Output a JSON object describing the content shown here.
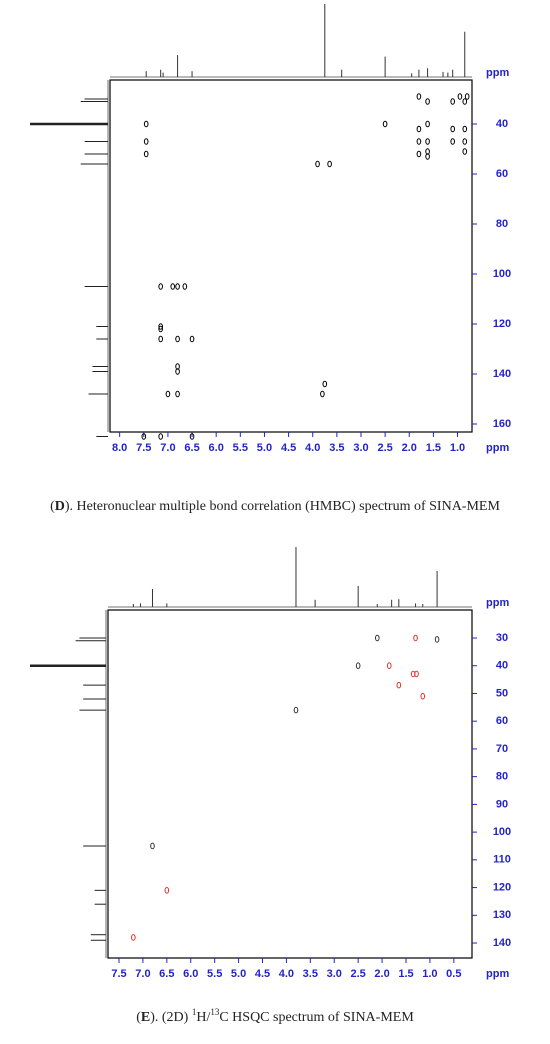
{
  "chart_data": [
    {
      "type": "scatter",
      "xlabel": "ppm",
      "ylabel": "ppm",
      "axis_color": "#2323c8",
      "caption": [
        {
          "text": "("
        },
        {
          "text": "D",
          "style": "bold"
        },
        {
          "text": "). Heteronuclear multiple bond correlation (HMBC) spectrum of SINA-MEM"
        }
      ],
      "xlim": [
        8.2,
        0.7
      ],
      "ylim": [
        22.4,
        163.2
      ],
      "xticks": [
        {
          "value": 8,
          "label": "8.0"
        },
        7.5,
        {
          "value": 7,
          "label": "7.0"
        },
        6.5,
        {
          "value": 6,
          "label": "6.0"
        },
        5.5,
        {
          "value": 5,
          "label": "5.0"
        },
        4.5,
        {
          "value": 4,
          "label": "4.0"
        },
        3.5,
        {
          "value": 3,
          "label": "3.0"
        },
        2.5,
        {
          "value": 2,
          "label": "2.0"
        },
        1.5,
        {
          "value": 1,
          "label": "1.0"
        }
      ],
      "yticks": [
        40,
        60,
        80,
        100,
        120,
        140,
        160
      ],
      "series": [
        {
          "color": "#000000",
          "x": [
            1.8,
            1.62,
            1.1,
            0.95,
            0.85,
            0.8,
            7.45,
            2.5,
            1.8,
            1.62,
            1.1,
            0.85,
            7.45,
            1.8,
            1.62,
            1.1,
            0.85,
            7.45,
            1.8,
            1.62,
            1.62,
            0.85,
            3.9,
            3.65,
            7.15,
            6.9,
            6.8,
            6.65,
            7.15,
            7.15,
            7.15,
            6.8,
            6.5,
            6.8,
            6.8,
            3.75,
            7.0,
            6.8,
            3.8,
            7.5,
            7.15,
            6.5
          ],
          "values": [
            29,
            31,
            31,
            29,
            31,
            29,
            40,
            40,
            42,
            40,
            42,
            42,
            47,
            47,
            47,
            47,
            47,
            52,
            52,
            51,
            53,
            51,
            56,
            56,
            105,
            105,
            105,
            105,
            121,
            122,
            126,
            126,
            126,
            137,
            139,
            144,
            148,
            148,
            148,
            165,
            165,
            165
          ]
        }
      ],
      "x_projection": {
        "x": [
          7.45,
          7.15,
          7.1,
          6.8,
          6.5,
          3.75,
          3.4,
          2.5,
          1.95,
          1.8,
          1.62,
          1.3,
          1.2,
          1.1,
          0.85
        ],
        "values": [
          0.08,
          0.1,
          0.06,
          0.3,
          0.08,
          1.0,
          0.1,
          0.28,
          0.05,
          0.1,
          0.12,
          0.07,
          0.06,
          0.1,
          0.62
        ]
      },
      "y_projection": {
        "x": [
          30,
          31,
          40,
          47,
          52,
          56,
          105,
          121,
          126,
          137,
          139,
          148,
          165
        ],
        "values": [
          0.3,
          0.35,
          1.0,
          0.3,
          0.3,
          0.35,
          0.3,
          0.15,
          0.15,
          0.2,
          0.2,
          0.25,
          0.15
        ]
      }
    },
    {
      "type": "scatter",
      "xlabel": "ppm",
      "ylabel": "ppm",
      "axis_color": "#2323c8",
      "caption": [
        {
          "text": "("
        },
        {
          "text": "E",
          "style": "bold"
        },
        {
          "text": "). (2D) "
        },
        {
          "text": "1",
          "style": "sup"
        },
        {
          "text": "H/"
        },
        {
          "text": "13",
          "style": "sup"
        },
        {
          "text": "C HSQC spectrum of SINA-MEM"
        }
      ],
      "xlim": [
        7.73,
        0.12
      ],
      "ylim": [
        19.9,
        145.4
      ],
      "xticks": [
        7.5,
        {
          "value": 7,
          "label": "7.0"
        },
        6.5,
        {
          "value": 6,
          "label": "6.0"
        },
        5.5,
        {
          "value": 5,
          "label": "5.0"
        },
        4.5,
        {
          "value": 4,
          "label": "4.0"
        },
        3.5,
        {
          "value": 3,
          "label": "3.0"
        },
        2.5,
        {
          "value": 2,
          "label": "2.0"
        },
        1.5,
        {
          "value": 1,
          "label": "1.0"
        },
        0.5
      ],
      "yticks": [
        30,
        40,
        50,
        60,
        70,
        80,
        90,
        100,
        110,
        120,
        130,
        140
      ],
      "series": [
        {
          "color": "#333333",
          "x": [
            2.1,
            0.85,
            2.5,
            3.8,
            6.8
          ],
          "values": [
            30,
            30.5,
            40,
            56,
            105
          ]
        },
        {
          "color": "#e0302a",
          "x": [
            1.3,
            1.85,
            1.35,
            1.28,
            1.65,
            1.15,
            6.5,
            7.2
          ],
          "values": [
            30,
            40,
            43,
            43,
            47,
            51,
            121,
            138
          ]
        }
      ],
      "x_projection": {
        "x": [
          7.2,
          7.05,
          6.8,
          6.5,
          3.8,
          3.4,
          2.5,
          2.1,
          1.8,
          1.65,
          1.3,
          1.15,
          0.85
        ],
        "values": [
          0.05,
          0.06,
          0.3,
          0.06,
          1.0,
          0.12,
          0.35,
          0.05,
          0.12,
          0.13,
          0.06,
          0.05,
          0.6
        ]
      },
      "y_projection": {
        "x": [
          30,
          31,
          40,
          47,
          52,
          56,
          105,
          121,
          126,
          137,
          139
        ],
        "values": [
          0.35,
          0.4,
          1.0,
          0.3,
          0.3,
          0.35,
          0.3,
          0.15,
          0.15,
          0.2,
          0.2
        ]
      }
    }
  ]
}
